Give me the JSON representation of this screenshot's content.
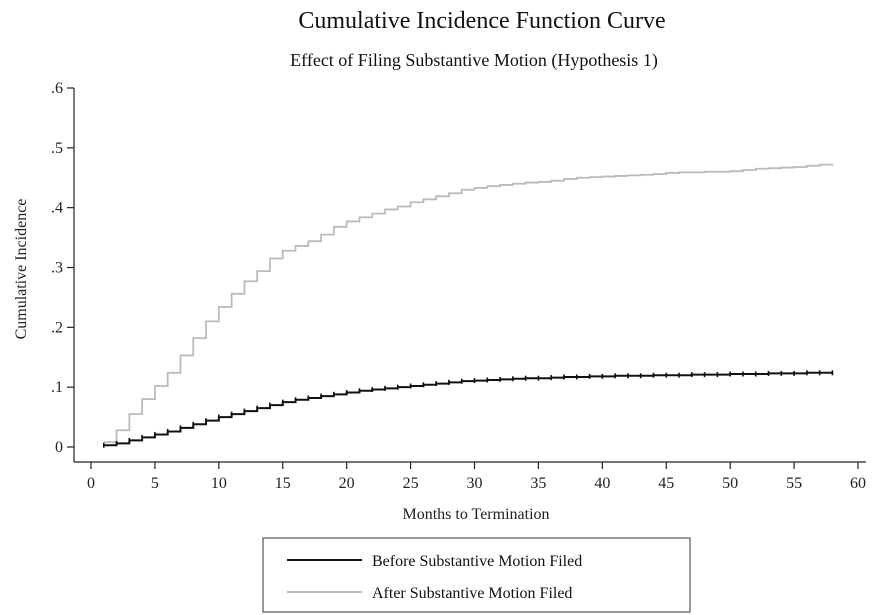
{
  "chart_data": {
    "type": "line",
    "step": true,
    "title": "Cumulative Incidence Function Curve",
    "subtitle": "Effect of Filing Substantive Motion (Hypothesis 1)",
    "xlabel": "Months to Termination",
    "ylabel": "Cumulative Incidence",
    "xlim": [
      0,
      60
    ],
    "ylim": [
      0,
      0.6
    ],
    "xticks": [
      0,
      5,
      10,
      15,
      20,
      25,
      30,
      35,
      40,
      45,
      50,
      55,
      60
    ],
    "yticks": [
      0,
      0.1,
      0.2,
      0.3,
      0.4,
      0.5,
      0.6
    ],
    "ytick_labels": [
      "0",
      ".1",
      ".2",
      ".3",
      ".4",
      ".5",
      ".6"
    ],
    "grid": false,
    "legend_position": "bottom",
    "series": [
      {
        "name": "Before Substantive Motion Filed",
        "color": "#111111",
        "markers": true,
        "x": [
          1,
          2,
          3,
          4,
          5,
          6,
          7,
          8,
          9,
          10,
          11,
          12,
          13,
          14,
          15,
          16,
          17,
          18,
          19,
          20,
          21,
          22,
          23,
          24,
          25,
          26,
          27,
          28,
          29,
          30,
          31,
          32,
          33,
          34,
          35,
          36,
          37,
          38,
          39,
          40,
          41,
          42,
          43,
          44,
          45,
          46,
          47,
          48,
          49,
          50,
          51,
          52,
          53,
          54,
          55,
          56,
          57,
          58
        ],
        "y": [
          0.003,
          0.006,
          0.011,
          0.016,
          0.021,
          0.026,
          0.032,
          0.038,
          0.044,
          0.05,
          0.055,
          0.06,
          0.065,
          0.07,
          0.075,
          0.079,
          0.082,
          0.085,
          0.088,
          0.091,
          0.094,
          0.096,
          0.098,
          0.1,
          0.102,
          0.104,
          0.106,
          0.108,
          0.11,
          0.111,
          0.112,
          0.113,
          0.114,
          0.115,
          0.115,
          0.116,
          0.117,
          0.117,
          0.118,
          0.118,
          0.119,
          0.119,
          0.119,
          0.12,
          0.12,
          0.12,
          0.121,
          0.121,
          0.121,
          0.122,
          0.122,
          0.122,
          0.123,
          0.123,
          0.123,
          0.124,
          0.124,
          0.124
        ]
      },
      {
        "name": "After Substantive Motion Filed",
        "color": "#bbbbbb",
        "markers": false,
        "x": [
          1,
          2,
          3,
          4,
          5,
          6,
          7,
          8,
          9,
          10,
          11,
          12,
          13,
          14,
          15,
          16,
          17,
          18,
          19,
          20,
          21,
          22,
          23,
          24,
          25,
          26,
          27,
          28,
          29,
          30,
          31,
          32,
          33,
          34,
          35,
          36,
          37,
          38,
          39,
          40,
          41,
          42,
          43,
          44,
          45,
          46,
          47,
          48,
          49,
          50,
          51,
          52,
          53,
          54,
          55,
          56,
          57,
          58
        ],
        "y": [
          0.008,
          0.028,
          0.055,
          0.08,
          0.102,
          0.124,
          0.153,
          0.182,
          0.21,
          0.234,
          0.256,
          0.277,
          0.294,
          0.315,
          0.328,
          0.336,
          0.344,
          0.355,
          0.368,
          0.377,
          0.384,
          0.39,
          0.397,
          0.402,
          0.409,
          0.414,
          0.419,
          0.424,
          0.43,
          0.433,
          0.436,
          0.438,
          0.44,
          0.442,
          0.443,
          0.445,
          0.448,
          0.45,
          0.451,
          0.452,
          0.453,
          0.454,
          0.455,
          0.456,
          0.458,
          0.459,
          0.459,
          0.46,
          0.46,
          0.461,
          0.463,
          0.465,
          0.466,
          0.467,
          0.468,
          0.47,
          0.472,
          0.473
        ]
      }
    ]
  }
}
